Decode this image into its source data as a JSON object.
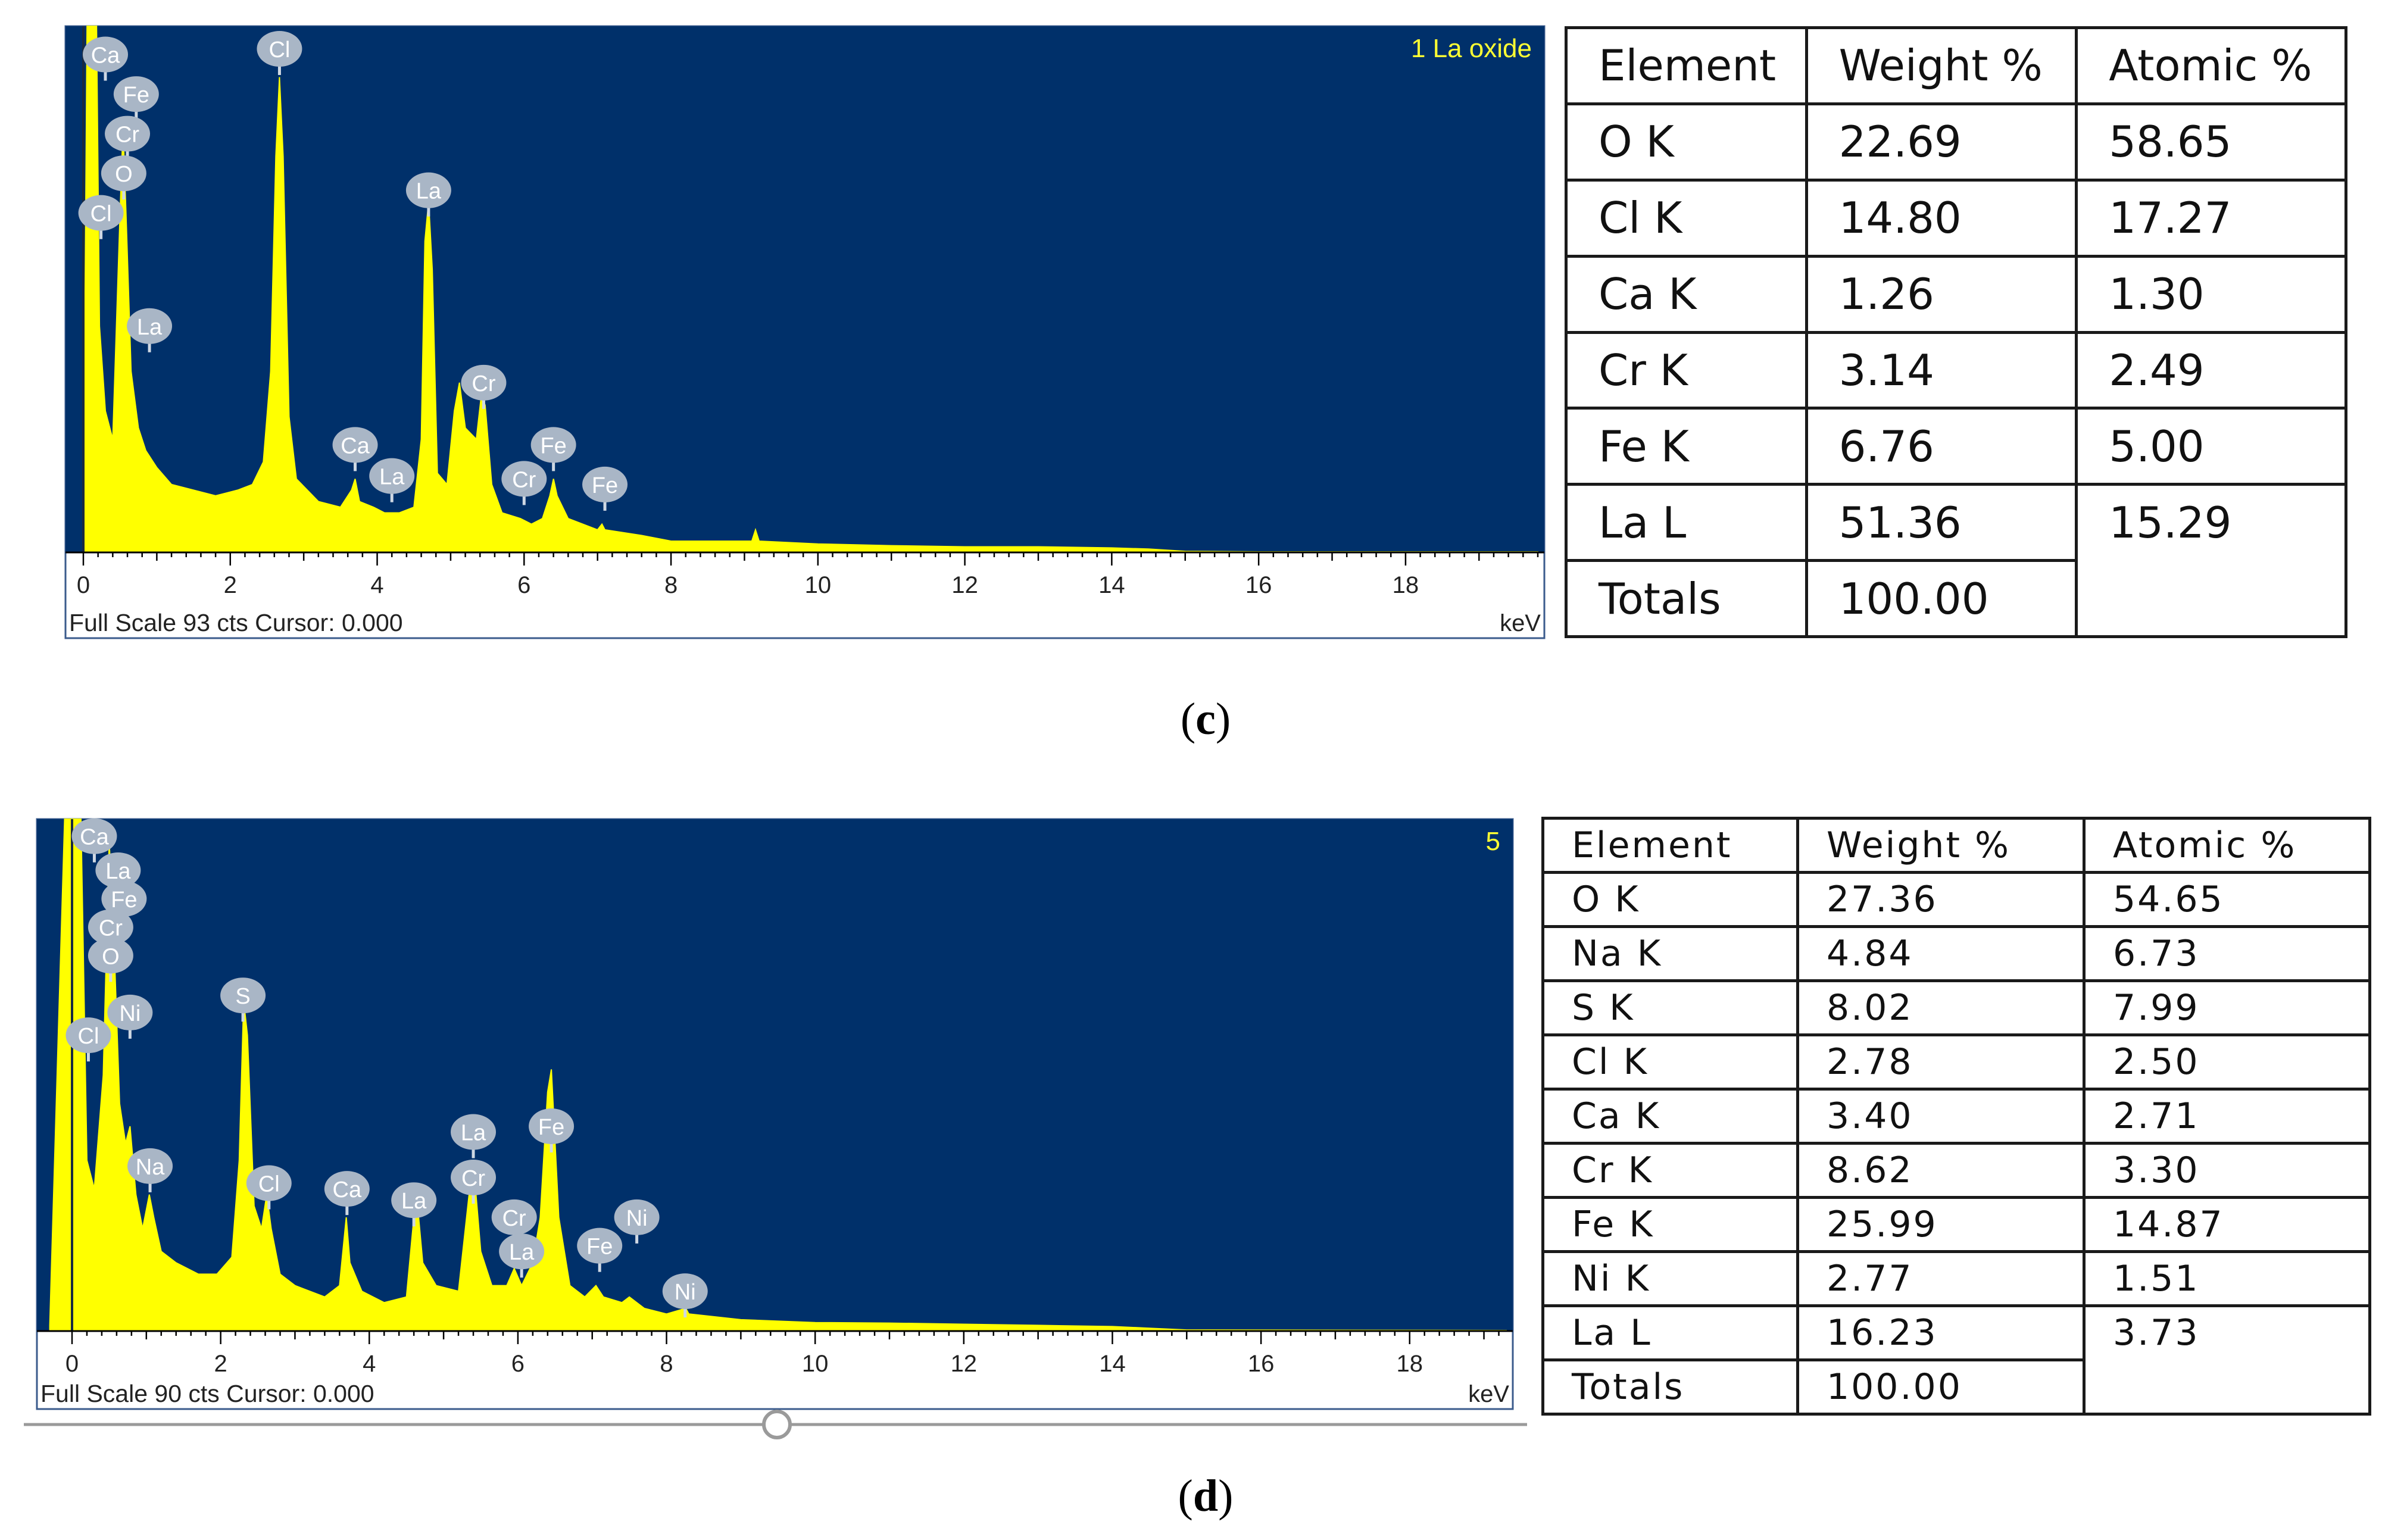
{
  "colors": {
    "plot_bg": "#00306a",
    "spectrum": "#ffff00",
    "peak_label_bg": "#a9b6c6",
    "label_text": "#ffffff",
    "title_yellow": "#ffff33"
  },
  "panel_c": {
    "label_open": "(",
    "label_letter": "c",
    "label_close": ")",
    "footer_scale": "Full Scale 93 cts Cursor: 0.000",
    "table": {
      "headers": [
        "Element",
        "Weight %",
        "Atomic %"
      ],
      "rows": [
        [
          "O K",
          "22.69",
          "58.65"
        ],
        [
          "Cl K",
          "14.80",
          "17.27"
        ],
        [
          "Ca K",
          "1.26",
          "1.30"
        ],
        [
          "Cr K",
          "3.14",
          "2.49"
        ],
        [
          "Fe K",
          "6.76",
          "5.00"
        ],
        [
          "La L",
          "51.36",
          "15.29"
        ]
      ],
      "totals_label": "Totals",
      "totals_value": "100.00"
    }
  },
  "panel_d": {
    "label_open": "(",
    "label_letter": "d",
    "label_close": ")",
    "footer_scale": "Full Scale 90 cts Cursor: 0.000",
    "table": {
      "headers": [
        "Element",
        "Weight %",
        "Atomic %"
      ],
      "rows": [
        [
          "O K",
          "27.36",
          "54.65"
        ],
        [
          "Na K",
          "4.84",
          "6.73"
        ],
        [
          "S K",
          "8.02",
          "7.99"
        ],
        [
          "Cl K",
          "2.78",
          "2.50"
        ],
        [
          "Ca K",
          "3.40",
          "2.71"
        ],
        [
          "Cr K",
          "8.62",
          "3.30"
        ],
        [
          "Fe K",
          "25.99",
          "14.87"
        ],
        [
          "Ni K",
          "2.77",
          "1.51"
        ],
        [
          "La L",
          "16.23",
          "3.73"
        ]
      ],
      "totals_label": "Totals",
      "totals_value": "100.00"
    }
  },
  "chart_data": [
    {
      "type": "line",
      "title": "1 La oxide",
      "xlabel": "keV",
      "ylabel": "",
      "xlim": [
        0,
        19.8
      ],
      "ylim": [
        0,
        93
      ],
      "xticks": [
        0,
        2,
        4,
        6,
        8,
        10,
        12,
        14,
        16,
        18
      ],
      "series": [
        {
          "name": "spectrum",
          "points": [
            [
              0.0,
              2
            ],
            [
              0.05,
              93
            ],
            [
              0.1,
              93
            ],
            [
              0.18,
              93
            ],
            [
              0.22,
              40
            ],
            [
              0.3,
              25
            ],
            [
              0.4,
              20
            ],
            [
              0.5,
              60
            ],
            [
              0.54,
              75
            ],
            [
              0.58,
              60
            ],
            [
              0.65,
              32
            ],
            [
              0.75,
              22
            ],
            [
              0.85,
              18
            ],
            [
              1.0,
              15
            ],
            [
              1.2,
              12
            ],
            [
              1.5,
              11
            ],
            [
              1.8,
              10
            ],
            [
              2.1,
              11
            ],
            [
              2.3,
              12
            ],
            [
              2.45,
              16
            ],
            [
              2.55,
              32
            ],
            [
              2.62,
              70
            ],
            [
              2.67,
              84
            ],
            [
              2.72,
              70
            ],
            [
              2.8,
              24
            ],
            [
              2.9,
              13
            ],
            [
              3.2,
              9
            ],
            [
              3.5,
              8
            ],
            [
              3.65,
              11
            ],
            [
              3.7,
              13
            ],
            [
              3.76,
              9
            ],
            [
              3.95,
              8
            ],
            [
              4.1,
              7
            ],
            [
              4.3,
              7
            ],
            [
              4.5,
              8
            ],
            [
              4.6,
              20
            ],
            [
              4.65,
              55
            ],
            [
              4.7,
              62
            ],
            [
              4.75,
              50
            ],
            [
              4.82,
              14
            ],
            [
              4.95,
              12
            ],
            [
              5.05,
              25
            ],
            [
              5.12,
              30
            ],
            [
              5.2,
              22
            ],
            [
              5.35,
              20
            ],
            [
              5.42,
              28
            ],
            [
              5.47,
              26
            ],
            [
              5.56,
              12
            ],
            [
              5.7,
              7
            ],
            [
              5.95,
              6
            ],
            [
              6.1,
              5
            ],
            [
              6.25,
              6
            ],
            [
              6.35,
              10
            ],
            [
              6.4,
              13
            ],
            [
              6.45,
              10
            ],
            [
              6.6,
              6
            ],
            [
              7.0,
              4
            ],
            [
              7.06,
              5
            ],
            [
              7.1,
              4
            ],
            [
              7.6,
              3
            ],
            [
              8.0,
              2
            ],
            [
              8.5,
              2
            ],
            [
              9.1,
              2
            ],
            [
              9.15,
              4
            ],
            [
              9.2,
              2
            ],
            [
              10.0,
              1.5
            ],
            [
              11.0,
              1.2
            ],
            [
              12.0,
              1
            ],
            [
              13.0,
              1
            ],
            [
              14.0,
              0.8
            ],
            [
              14.5,
              0.6
            ],
            [
              15.0,
              0.2
            ],
            [
              16.0,
              0.1
            ],
            [
              19.8,
              0.1
            ]
          ]
        }
      ],
      "annotations": [
        {
          "text": "Ca",
          "x": 0.3,
          "y": 88
        },
        {
          "text": "Fe",
          "x": 0.72,
          "y": 81
        },
        {
          "text": "Cr",
          "x": 0.6,
          "y": 74
        },
        {
          "text": "O",
          "x": 0.55,
          "y": 67
        },
        {
          "text": "Cl",
          "x": 0.24,
          "y": 60
        },
        {
          "text": "Cl",
          "x": 2.67,
          "y": 89
        },
        {
          "text": "La",
          "x": 0.9,
          "y": 40
        },
        {
          "text": "La",
          "x": 4.7,
          "y": 64
        },
        {
          "text": "Cr",
          "x": 5.45,
          "y": 30
        },
        {
          "text": "Ca",
          "x": 3.7,
          "y": 19
        },
        {
          "text": "La",
          "x": 4.2,
          "y": 13.5
        },
        {
          "text": "Fe",
          "x": 6.4,
          "y": 19
        },
        {
          "text": "Cr",
          "x": 6.0,
          "y": 13
        },
        {
          "text": "Fe",
          "x": 7.1,
          "y": 12
        }
      ]
    },
    {
      "type": "line",
      "title": "5",
      "xlabel": "keV",
      "ylabel": "",
      "xlim": [
        0,
        19.3
      ],
      "ylim": [
        0,
        90
      ],
      "xticks": [
        0,
        2,
        4,
        6,
        8,
        10,
        12,
        14,
        16,
        18
      ],
      "series": [
        {
          "name": "spectrum",
          "points": [
            [
              -0.3,
              1
            ],
            [
              -0.1,
              90
            ],
            [
              0.05,
              90
            ],
            [
              0.12,
              90
            ],
            [
              0.2,
              30
            ],
            [
              0.3,
              25
            ],
            [
              0.42,
              45
            ],
            [
              0.5,
              86
            ],
            [
              0.56,
              70
            ],
            [
              0.64,
              40
            ],
            [
              0.72,
              33
            ],
            [
              0.78,
              36
            ],
            [
              0.86,
              24
            ],
            [
              0.95,
              18
            ],
            [
              1.04,
              24
            ],
            [
              1.1,
              20
            ],
            [
              1.2,
              14
            ],
            [
              1.4,
              12
            ],
            [
              1.7,
              10
            ],
            [
              1.95,
              10
            ],
            [
              2.15,
              13
            ],
            [
              2.25,
              30
            ],
            [
              2.31,
              58
            ],
            [
              2.36,
              52
            ],
            [
              2.45,
              22
            ],
            [
              2.55,
              18
            ],
            [
              2.62,
              24
            ],
            [
              2.68,
              18
            ],
            [
              2.8,
              10
            ],
            [
              3.0,
              8
            ],
            [
              3.4,
              6
            ],
            [
              3.6,
              8
            ],
            [
              3.69,
              20
            ],
            [
              3.74,
              12
            ],
            [
              3.9,
              7
            ],
            [
              4.2,
              5
            ],
            [
              4.5,
              6
            ],
            [
              4.6,
              20
            ],
            [
              4.65,
              22
            ],
            [
              4.72,
              12
            ],
            [
              4.9,
              8
            ],
            [
              5.2,
              7
            ],
            [
              5.36,
              26
            ],
            [
              5.41,
              28
            ],
            [
              5.5,
              14
            ],
            [
              5.65,
              8
            ],
            [
              5.85,
              8
            ],
            [
              5.95,
              11
            ],
            [
              6.05,
              8
            ],
            [
              6.2,
              12
            ],
            [
              6.3,
              20
            ],
            [
              6.4,
              42
            ],
            [
              6.45,
              46
            ],
            [
              6.55,
              20
            ],
            [
              6.7,
              8
            ],
            [
              6.9,
              6
            ],
            [
              7.05,
              8
            ],
            [
              7.15,
              6
            ],
            [
              7.4,
              5
            ],
            [
              7.5,
              6
            ],
            [
              7.7,
              4
            ],
            [
              8.0,
              3
            ],
            [
              8.26,
              4
            ],
            [
              8.3,
              3
            ],
            [
              9.0,
              2
            ],
            [
              10.0,
              1.5
            ],
            [
              11.0,
              1.4
            ],
            [
              12.0,
              1.2
            ],
            [
              13.0,
              1
            ],
            [
              14.0,
              0.8
            ],
            [
              14.5,
              0.5
            ],
            [
              15.0,
              0.2
            ],
            [
              19.3,
              0.1
            ]
          ]
        }
      ],
      "annotations": [
        {
          "text": "Ca",
          "x": 0.3,
          "y": 87
        },
        {
          "text": "La",
          "x": 0.62,
          "y": 81
        },
        {
          "text": "Fe",
          "x": 0.7,
          "y": 76
        },
        {
          "text": "Cr",
          "x": 0.52,
          "y": 71
        },
        {
          "text": "O",
          "x": 0.52,
          "y": 66
        },
        {
          "text": "Ni",
          "x": 0.78,
          "y": 56
        },
        {
          "text": "Cl",
          "x": 0.22,
          "y": 52
        },
        {
          "text": "S",
          "x": 2.3,
          "y": 59
        },
        {
          "text": "Na",
          "x": 1.05,
          "y": 29
        },
        {
          "text": "Cl",
          "x": 2.65,
          "y": 26
        },
        {
          "text": "Ca",
          "x": 3.7,
          "y": 25
        },
        {
          "text": "La",
          "x": 4.6,
          "y": 23
        },
        {
          "text": "La",
          "x": 5.4,
          "y": 35
        },
        {
          "text": "Cr",
          "x": 5.4,
          "y": 27
        },
        {
          "text": "Cr",
          "x": 5.95,
          "y": 20
        },
        {
          "text": "La",
          "x": 6.05,
          "y": 14
        },
        {
          "text": "Fe",
          "x": 6.45,
          "y": 36
        },
        {
          "text": "Fe",
          "x": 7.1,
          "y": 15
        },
        {
          "text": "Ni",
          "x": 7.6,
          "y": 20
        },
        {
          "text": "Ni",
          "x": 8.25,
          "y": 7
        }
      ]
    }
  ]
}
